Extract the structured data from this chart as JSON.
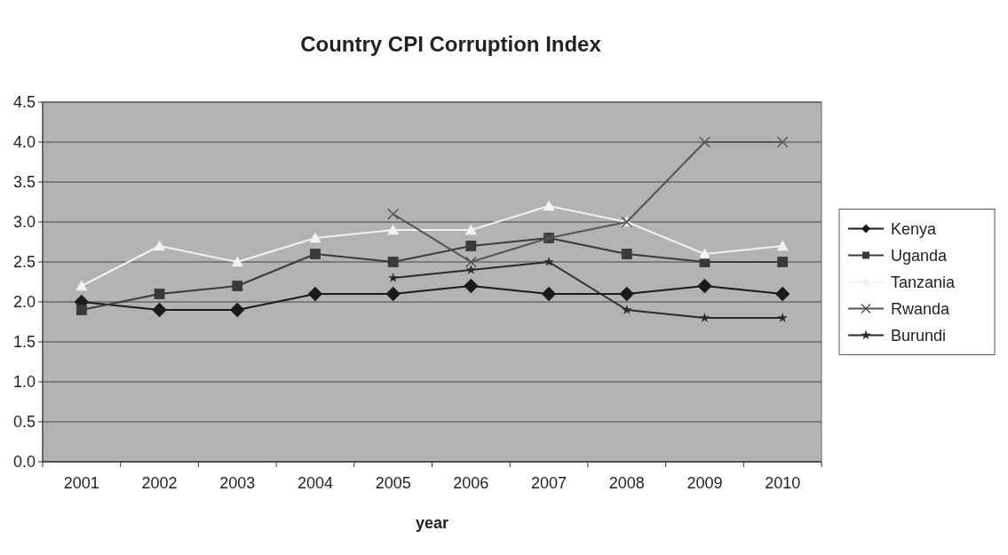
{
  "chart_data": {
    "type": "line",
    "title": "Country CPI Corruption Index",
    "xlabel": "year",
    "categories": [
      "2001",
      "2002",
      "2003",
      "2004",
      "2005",
      "2006",
      "2007",
      "2008",
      "2009",
      "2010"
    ],
    "series": [
      {
        "name": "Kenya",
        "color": "#1a1a1a",
        "marker": "diamond",
        "values": [
          2.0,
          1.9,
          1.9,
          2.1,
          2.1,
          2.2,
          2.1,
          2.1,
          2.2,
          2.1
        ]
      },
      {
        "name": "Uganda",
        "color": "#3a3a3a",
        "marker": "square",
        "values": [
          1.9,
          2.1,
          2.2,
          2.6,
          2.5,
          2.7,
          2.8,
          2.6,
          2.5,
          2.5
        ]
      },
      {
        "name": "Tanzania",
        "color": "#f2f2f2",
        "marker": "triangle",
        "values": [
          2.2,
          2.7,
          2.5,
          2.8,
          2.9,
          2.9,
          3.2,
          3.0,
          2.6,
          2.7
        ]
      },
      {
        "name": "Rwanda",
        "color": "#555555",
        "marker": "cross",
        "values": [
          null,
          null,
          null,
          null,
          3.1,
          2.5,
          2.8,
          3.0,
          4.0,
          4.0
        ]
      },
      {
        "name": "Burundi",
        "color": "#2a2a2a",
        "marker": "star",
        "values": [
          null,
          null,
          null,
          null,
          2.3,
          2.4,
          2.5,
          1.9,
          1.8,
          1.8
        ]
      }
    ],
    "ylim": [
      0,
      4.5
    ],
    "yticks": [
      {
        "value": 0,
        "label": "0.0"
      },
      {
        "value": 0.5,
        "label": "0.5"
      },
      {
        "value": 1,
        "label": "1.0"
      },
      {
        "value": 1.5,
        "label": "1.5"
      },
      {
        "value": 2,
        "label": "2.0"
      },
      {
        "value": 2.5,
        "label": "2.5"
      },
      {
        "value": 3,
        "label": "3.0"
      },
      {
        "value": 3.5,
        "label": "3.5"
      },
      {
        "value": 4,
        "label": "4.0"
      },
      {
        "value": 4.5,
        "label": "4.5"
      }
    ],
    "grid": "y",
    "legend": "right"
  }
}
